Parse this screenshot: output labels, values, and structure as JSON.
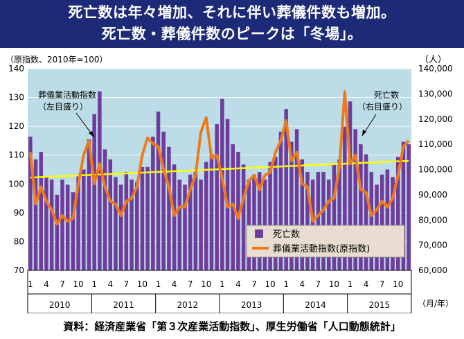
{
  "header": {
    "title_line1": "死亡数は年々増加、それに伴い葬儀件数も増加。",
    "title_line2": "死亡数・葬儀件数のピークは「冬場」。"
  },
  "colors": {
    "header_bg": "#1c2a78",
    "plot_bg": "#bcdde8",
    "deaths_bar": "#6f3c9e",
    "funeral_line": "#ee7a1e",
    "trend_line": "#ffff00",
    "legend_bg": "#e8ddd0"
  },
  "chart_data": {
    "type": "bar+line",
    "left_axis_label": "（原指数、2010年=100）",
    "right_axis_label": "（人）",
    "x_axis_unit_label": "（月/年）",
    "ylim_left": [
      70,
      140
    ],
    "ylim_right": [
      60000,
      140000
    ],
    "left_ticks": [
      "70",
      "80",
      "90",
      "100",
      "110",
      "120",
      "130",
      "140"
    ],
    "right_ticks": [
      "60,000",
      "70,000",
      "80,000",
      "90,000",
      "100,000",
      "110,000",
      "120,000",
      "130,000",
      "140,000"
    ],
    "month_tick_labels": [
      "1",
      "4",
      "7",
      "10"
    ],
    "years": [
      "2010",
      "2011",
      "2012",
      "2013",
      "2014",
      "2015"
    ],
    "legend": [
      "死亡数",
      "葬儀業活動指数(原指数)"
    ],
    "annotations": [
      {
        "text_line1": "葬儀業活動指数",
        "text_line2": "（左目盛り）"
      },
      {
        "text_line1": "死亡数",
        "text_line2": "（右目盛り）"
      }
    ],
    "series": [
      {
        "name": "死亡数",
        "axis": "right",
        "kind": "bar",
        "values": [
          113000,
          104000,
          107000,
          97000,
          96000,
          90000,
          96000,
          94000,
          91000,
          98000,
          100000,
          112000,
          122000,
          131000,
          108000,
          104000,
          97000,
          94000,
          99000,
          96000,
          95000,
          101000,
          101000,
          113000,
          123000,
          115000,
          109000,
          102000,
          96000,
          94000,
          98000,
          99000,
          96000,
          103000,
          106000,
          118000,
          128000,
          120000,
          110000,
          107000,
          102000,
          96000,
          98000,
          99000,
          96000,
          103000,
          105000,
          115000,
          124000,
          111000,
          116000,
          104000,
          99000,
          96000,
          99000,
          99000,
          96000,
          102000,
          104000,
          117000,
          127000,
          116000,
          110000,
          106000,
          99000,
          94000,
          98000,
          100000,
          97000,
          105000,
          111000,
          110000
        ]
      },
      {
        "name": "葬儀業活動指数(原指数)",
        "axis": "left",
        "kind": "line",
        "values": [
          111,
          93,
          99,
          94,
          91,
          86,
          89,
          87,
          88,
          100,
          110,
          115,
          100,
          107,
          99,
          94,
          93,
          89,
          94,
          95,
          99,
          110,
          116,
          114,
          113,
          105,
          99,
          89,
          92,
          92,
          98,
          103,
          118,
          123,
          109,
          110,
          102,
          92,
          93,
          88,
          95,
          101,
          103,
          98,
          103,
          104,
          111,
          115,
          122,
          108,
          111,
          100,
          99,
          87,
          89,
          91,
          94,
          95,
          106,
          132,
          107,
          110,
          98,
          97,
          89,
          91,
          94,
          92,
          95,
          103,
          113,
          115
        ]
      },
      {
        "name": "trend",
        "axis": "left",
        "kind": "line",
        "values_start_end": [
          102.2,
          108.0
        ]
      }
    ]
  },
  "source": {
    "text": "資料：経済産業省「第３次産業活動指数」、厚生労働省「人口動態統計」"
  }
}
